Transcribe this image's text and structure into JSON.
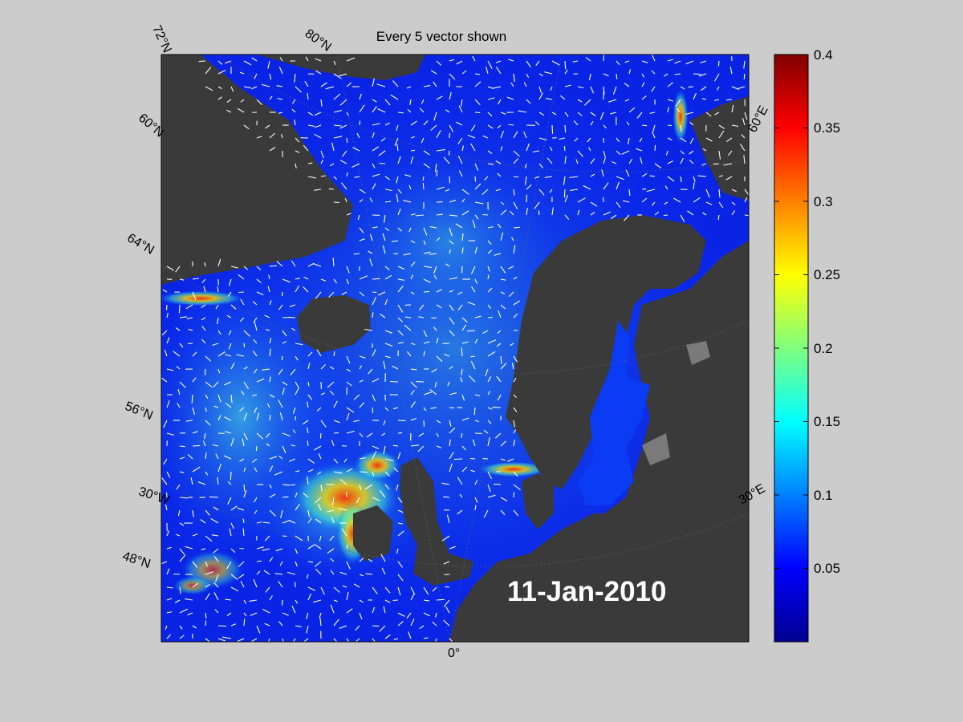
{
  "title": "Every 5 vector shown",
  "date_label": "11-Jan-2010",
  "lat_labels": [
    "72°N",
    "80°N",
    "60°N",
    "64°N",
    "56°N",
    "48°N"
  ],
  "lon_labels": [
    "30°W",
    "0°",
    "30°E",
    "60°E"
  ],
  "colorbar": {
    "min": 0,
    "max": 0.4,
    "ticks": [
      "0.4",
      "0.35",
      "0.3",
      "0.25",
      "0.2",
      "0.15",
      "0.1",
      "0.05"
    ],
    "colormap": "jet"
  },
  "colors": {
    "background": "#cccccc",
    "land": "#3a3a3a",
    "ocean_low": "#0a1fe0",
    "vector": "#ffffff"
  },
  "vector_density": "Every 5 vector shown"
}
